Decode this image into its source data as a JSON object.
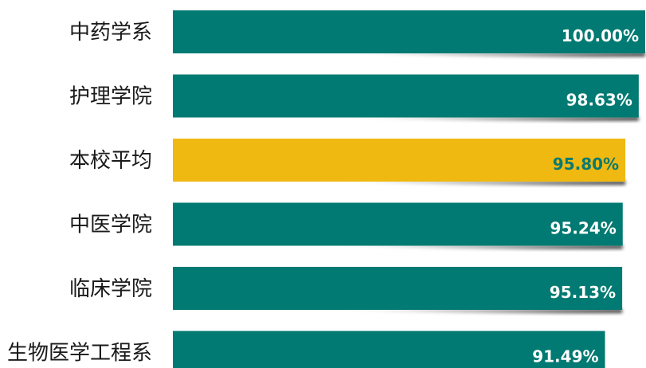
{
  "chart_data": {
    "type": "bar",
    "orientation": "horizontal",
    "categories": [
      "中药学系",
      "护理学院",
      "本校平均",
      "中医学院",
      "临床学院",
      "生物医学工程系"
    ],
    "values": [
      100.0,
      98.63,
      95.8,
      95.24,
      95.13,
      91.49
    ],
    "value_labels": [
      "100.00%",
      "98.63%",
      "95.80%",
      "95.24%",
      "95.13%",
      "91.49%"
    ],
    "xlim": [
      0,
      100
    ],
    "grid": false,
    "legend": "none",
    "highlight_category": "本校平均",
    "colors": {
      "bar": "#007a72",
      "highlight": "#f0b912",
      "label_on_bar": "#ffffff",
      "label_on_highlight": "#0b7a6e",
      "category_text": "#1a1a1a"
    }
  }
}
